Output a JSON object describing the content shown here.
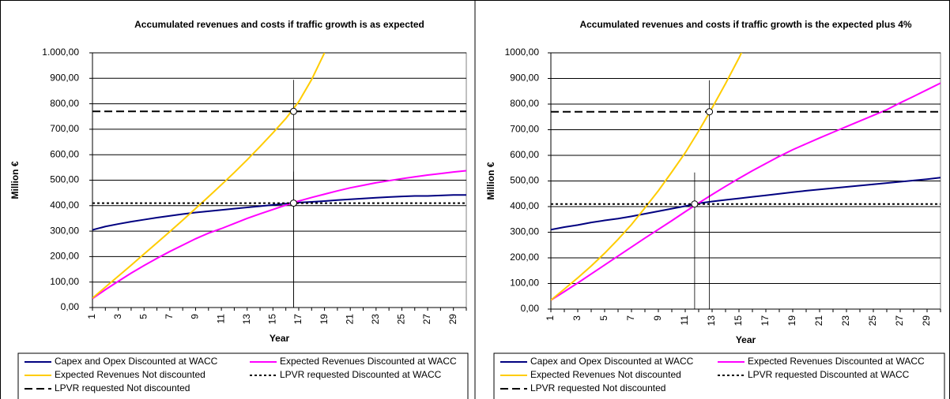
{
  "chart_data": [
    {
      "type": "line",
      "title": "Accumulated revenues and costs if traffic growth is as expected",
      "x_label": "Year",
      "y_label": "Million €",
      "categories": [
        "1",
        null,
        "3",
        null,
        "5",
        null,
        "7",
        null,
        "9",
        null,
        "11",
        null,
        "13",
        null,
        "15",
        null,
        "17",
        null,
        "19",
        null,
        "21",
        null,
        "23",
        null,
        "25",
        null,
        "27",
        null,
        "29",
        null
      ],
      "ylim": [
        0,
        1000
      ],
      "yticks": [
        {
          "value": 0,
          "label": "0,00"
        },
        {
          "value": 100,
          "label": "100,00"
        },
        {
          "value": 200,
          "label": "200,00"
        },
        {
          "value": 300,
          "label": "300,00"
        },
        {
          "value": 400,
          "label": "400,00"
        },
        {
          "value": 500,
          "label": "500,00"
        },
        {
          "value": 600,
          "label": "600,00"
        },
        {
          "value": 700,
          "label": "700,00"
        },
        {
          "value": 800,
          "label": "800,00"
        },
        {
          "value": 900,
          "label": "900,00"
        },
        {
          "value": 1000,
          "label": "1.000,00"
        }
      ],
      "grid": true,
      "series": [
        {
          "name": "Capex and Opex Discounted at WACC",
          "color": "#000080",
          "values": [
            305,
            318,
            328,
            337,
            345,
            353,
            360,
            367,
            373,
            378,
            383,
            388,
            393,
            398,
            403,
            408,
            412,
            415,
            418,
            422,
            425,
            428,
            431,
            434,
            436,
            438,
            438,
            440,
            442,
            442
          ]
        },
        {
          "name": "Expected Revenues Discounted at WACC",
          "color": "#ff00ff",
          "values": [
            35,
            70,
            103,
            135,
            165,
            193,
            220,
            245,
            270,
            292,
            310,
            330,
            350,
            368,
            385,
            402,
            418,
            432,
            445,
            458,
            470,
            480,
            490,
            498,
            506,
            513,
            520,
            526,
            532,
            537
          ]
        },
        {
          "name": "Expected Revenues Not discounted",
          "color": "#ffcc00",
          "values": [
            37,
            80,
            123,
            166,
            210,
            254,
            298,
            343,
            389,
            435,
            482,
            530,
            580,
            632,
            686,
            742,
            808,
            895,
            1000,
            null,
            null,
            null,
            null,
            null,
            null,
            null,
            null,
            null,
            null,
            null
          ]
        },
        {
          "name": "LPVR requested Discounted at WACC",
          "color": "#000000",
          "dash": "dotted",
          "values": [
            410,
            410,
            410,
            410,
            410,
            410,
            410,
            410,
            410,
            410,
            410,
            410,
            410,
            410,
            410,
            410,
            410,
            410,
            410,
            410,
            410,
            410,
            410,
            410,
            410,
            410,
            410,
            410,
            410,
            410
          ]
        },
        {
          "name": "LPVR requested Not discounted",
          "color": "#000000",
          "dash": "dashed",
          "values": [
            770,
            770,
            770,
            770,
            770,
            770,
            770,
            770,
            770,
            770,
            770,
            770,
            770,
            770,
            770,
            770,
            770,
            770,
            770,
            770,
            770,
            770,
            770,
            770,
            770,
            770,
            770,
            770,
            770,
            770
          ]
        }
      ],
      "crossings": [
        {
          "x": 16.6,
          "y": 410
        },
        {
          "x": 16.6,
          "y": 770
        }
      ]
    },
    {
      "type": "line",
      "title": "Accumulated revenues and costs if traffic growth is the expected plus 4%",
      "x_label": "Year",
      "y_label": "Million €",
      "categories": [
        "1",
        null,
        "3",
        null,
        "5",
        null,
        "7",
        null,
        "9",
        null,
        "11",
        null,
        "13",
        null,
        "15",
        null,
        "17",
        null,
        "19",
        null,
        "21",
        null,
        "23",
        null,
        "25",
        null,
        "27",
        null,
        "29",
        null
      ],
      "ylim": [
        0,
        1000
      ],
      "yticks": [
        {
          "value": 0,
          "label": "0,00"
        },
        {
          "value": 100,
          "label": "100,00"
        },
        {
          "value": 200,
          "label": "200,00"
        },
        {
          "value": 300,
          "label": "300,00"
        },
        {
          "value": 400,
          "label": "400,00"
        },
        {
          "value": 500,
          "label": "500,00"
        },
        {
          "value": 600,
          "label": "600,00"
        },
        {
          "value": 700,
          "label": "700,00"
        },
        {
          "value": 800,
          "label": "800,00"
        },
        {
          "value": 900,
          "label": "900,00"
        },
        {
          "value": 1000,
          "label": "1000,00"
        }
      ],
      "grid": true,
      "series": [
        {
          "name": "Capex and Opex Discounted at WACC",
          "color": "#000080",
          "values": [
            310,
            320,
            328,
            338,
            346,
            353,
            362,
            372,
            382,
            392,
            402,
            413,
            420,
            426,
            432,
            438,
            444,
            450,
            456,
            462,
            467,
            472,
            477,
            482,
            487,
            492,
            497,
            502,
            507,
            513
          ]
        },
        {
          "name": "Expected Revenues Discounted at WACC",
          "color": "#ff00ff",
          "values": [
            35,
            68,
            102,
            137,
            172,
            207,
            242,
            277,
            311,
            345,
            380,
            414,
            447,
            479,
            510,
            540,
            568,
            596,
            622,
            645,
            668,
            690,
            712,
            734,
            756,
            778,
            805,
            830,
            856,
            882
          ]
        },
        {
          "name": "Expected Revenues Not discounted",
          "color": "#ffcc00",
          "values": [
            35,
            78,
            122,
            168,
            218,
            272,
            330,
            395,
            462,
            535,
            610,
            695,
            785,
            880,
            980,
            1090,
            null,
            null,
            null,
            null,
            null,
            null,
            null,
            null,
            null,
            null,
            null,
            null,
            null,
            null
          ]
        },
        {
          "name": "LPVR requested Discounted at WACC",
          "color": "#000000",
          "dash": "dotted",
          "values": [
            410,
            410,
            410,
            410,
            410,
            410,
            410,
            410,
            410,
            410,
            410,
            410,
            410,
            410,
            410,
            410,
            410,
            410,
            410,
            410,
            410,
            410,
            410,
            410,
            410,
            410,
            410,
            410,
            410,
            410
          ]
        },
        {
          "name": "LPVR requested Not discounted",
          "color": "#000000",
          "dash": "dashed",
          "values": [
            770,
            770,
            770,
            770,
            770,
            770,
            770,
            770,
            770,
            770,
            770,
            770,
            770,
            770,
            770,
            770,
            770,
            770,
            770,
            770,
            770,
            770,
            770,
            770,
            770,
            770,
            770,
            770,
            770,
            770
          ]
        }
      ],
      "crossings": [
        {
          "x": 11.7,
          "y": 410
        },
        {
          "x": 12.8,
          "y": 770
        }
      ]
    }
  ]
}
